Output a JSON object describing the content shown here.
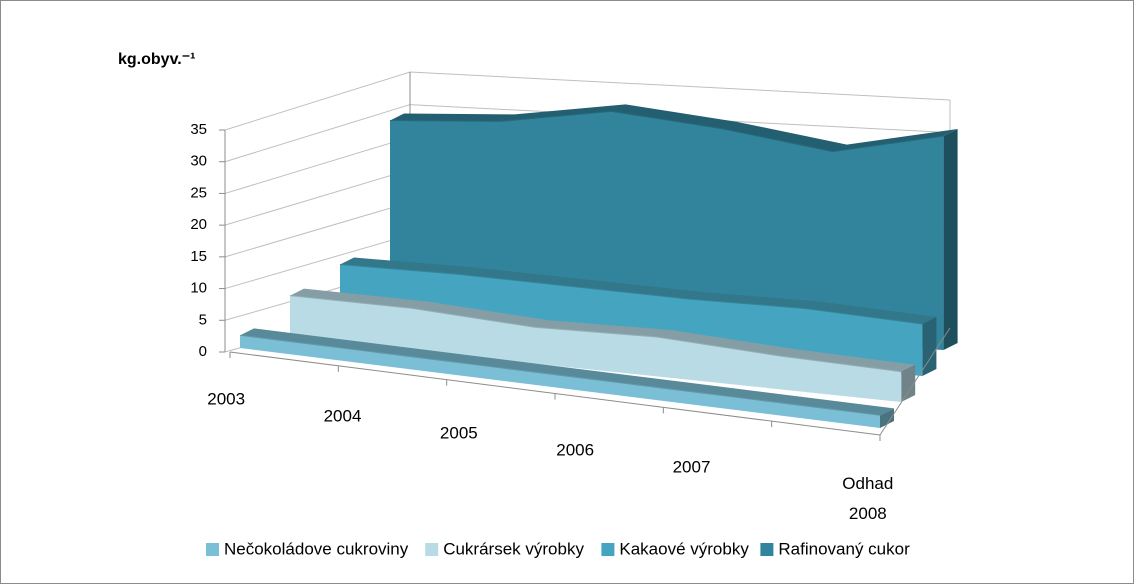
{
  "chart_data": {
    "type": "area3d",
    "y_label": "kg.obyv.⁻¹",
    "categories": [
      "2003",
      "2004",
      "2005",
      "2006",
      "2007",
      "Odhad 2008"
    ],
    "series": [
      {
        "name": "Nečokoládove cukroviny",
        "color": "#7bbfd6",
        "values": [
          2,
          2,
          2,
          2,
          2,
          2
        ]
      },
      {
        "name": "Cukrársek výrobky",
        "color": "#b9dbe5",
        "values": [
          7,
          7,
          6,
          6.5,
          5.5,
          5
        ]
      },
      {
        "name": "Kakaové výrobky",
        "color": "#45a5c0",
        "values": [
          11,
          11,
          10.5,
          10,
          10,
          9
        ]
      },
      {
        "name": "Rafinovaný cukor",
        "color": "#31849b",
        "values": [
          36,
          37,
          40,
          38,
          35,
          39
        ]
      }
    ],
    "ylim": [
      0,
      35
    ],
    "yticks": [
      0,
      5,
      10,
      15,
      20,
      25,
      30,
      35
    ],
    "grid": true,
    "legend": "bottom"
  }
}
